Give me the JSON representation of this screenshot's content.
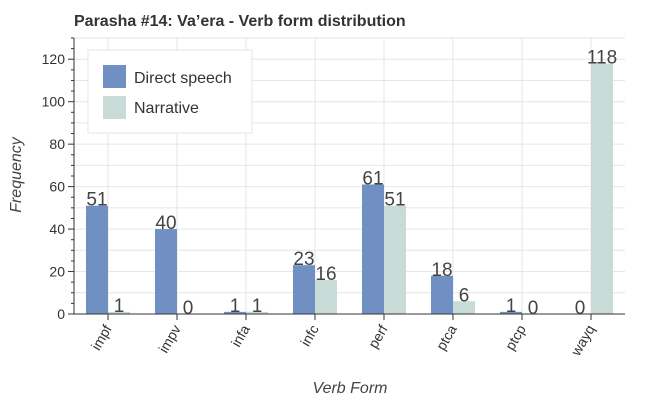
{
  "chart_data": {
    "type": "bar",
    "title": "Parasha #14: Va’era - Verb form distribution",
    "xlabel": "Verb Form",
    "ylabel": "Frequency",
    "categories": [
      "impf",
      "impv",
      "infa",
      "infc",
      "perf",
      "ptca",
      "ptcp",
      "wayq"
    ],
    "series": [
      {
        "name": "Direct speech",
        "color": "#7090c3",
        "values": [
          51,
          40,
          1,
          23,
          61,
          18,
          1,
          0
        ]
      },
      {
        "name": "Narrative",
        "color": "#c8dbd6",
        "values": [
          1,
          0,
          1,
          16,
          51,
          6,
          0,
          118
        ]
      }
    ],
    "ylim": [
      0,
      130
    ],
    "yticks": [
      0,
      20,
      40,
      60,
      80,
      100,
      120
    ],
    "grid": true,
    "legend_position": "top-left",
    "x_tick_rotation": -60
  }
}
